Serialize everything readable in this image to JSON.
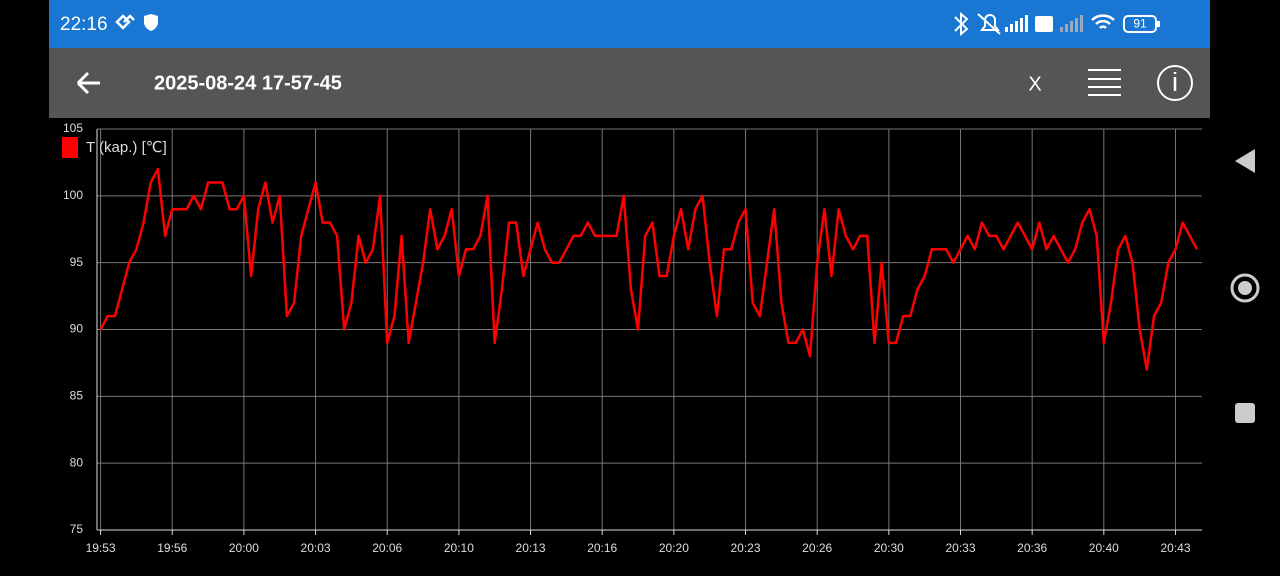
{
  "status_bar": {
    "time": "22:16",
    "battery": "91"
  },
  "toolbar": {
    "title": "2025-08-24 17-57-45",
    "close": "X"
  },
  "chart_data": {
    "type": "line",
    "series": [
      {
        "name": "T (kap.) [℃]",
        "color": "#ff0000",
        "values": [
          90,
          91,
          91,
          93,
          95,
          96,
          98,
          101,
          102,
          97,
          99,
          99,
          99,
          100,
          99,
          101,
          101,
          101,
          99,
          99,
          100,
          94,
          99,
          101,
          98,
          100,
          91,
          92,
          97,
          99,
          101,
          98,
          98,
          97,
          90,
          92,
          97,
          95,
          96,
          100,
          89,
          91,
          97,
          89,
          92,
          95,
          99,
          96,
          97,
          99,
          94,
          96,
          96,
          97,
          100,
          89,
          93,
          98,
          98,
          94,
          96,
          98,
          96,
          95,
          95,
          96,
          97,
          97,
          98,
          97,
          97,
          97,
          97,
          100,
          93,
          90,
          97,
          98,
          94,
          94,
          97,
          99,
          96,
          99,
          100,
          95,
          91,
          96,
          96,
          98,
          99,
          92,
          91,
          95,
          99,
          92,
          89,
          89,
          90,
          88,
          95,
          99,
          94,
          99,
          97,
          96,
          97,
          97,
          89,
          95,
          89,
          89,
          91,
          91,
          93,
          94,
          96,
          96,
          96,
          95,
          96,
          97,
          96,
          98,
          97,
          97,
          96,
          97,
          98,
          97,
          96,
          98,
          96,
          97,
          96,
          95,
          96,
          98,
          99,
          97,
          89,
          92,
          96,
          97,
          95,
          90,
          87,
          91,
          92,
          95,
          96,
          98,
          97,
          96
        ]
      }
    ],
    "xlim": [
      -0.5,
      153.7
    ],
    "xticks": [
      {
        "value": 0,
        "label": "19:53"
      },
      {
        "value": 10,
        "label": "19:56"
      },
      {
        "value": 20,
        "label": "20:00"
      },
      {
        "value": 30,
        "label": "20:03"
      },
      {
        "value": 40,
        "label": "20:06"
      },
      {
        "value": 50,
        "label": "20:10"
      },
      {
        "value": 60,
        "label": "20:13"
      },
      {
        "value": 70,
        "label": "20:16"
      },
      {
        "value": 80,
        "label": "20:20"
      },
      {
        "value": 90,
        "label": "20:23"
      },
      {
        "value": 100,
        "label": "20:26"
      },
      {
        "value": 110,
        "label": "20:30"
      },
      {
        "value": 120,
        "label": "20:33"
      },
      {
        "value": 130,
        "label": "20:36"
      },
      {
        "value": 140,
        "label": "20:40"
      },
      {
        "value": 150,
        "label": "20:43"
      }
    ],
    "ylim": [
      75,
      105
    ],
    "yticks": [
      75,
      80,
      85,
      90,
      95,
      100,
      105
    ],
    "grid": true,
    "legend": "top-left"
  }
}
